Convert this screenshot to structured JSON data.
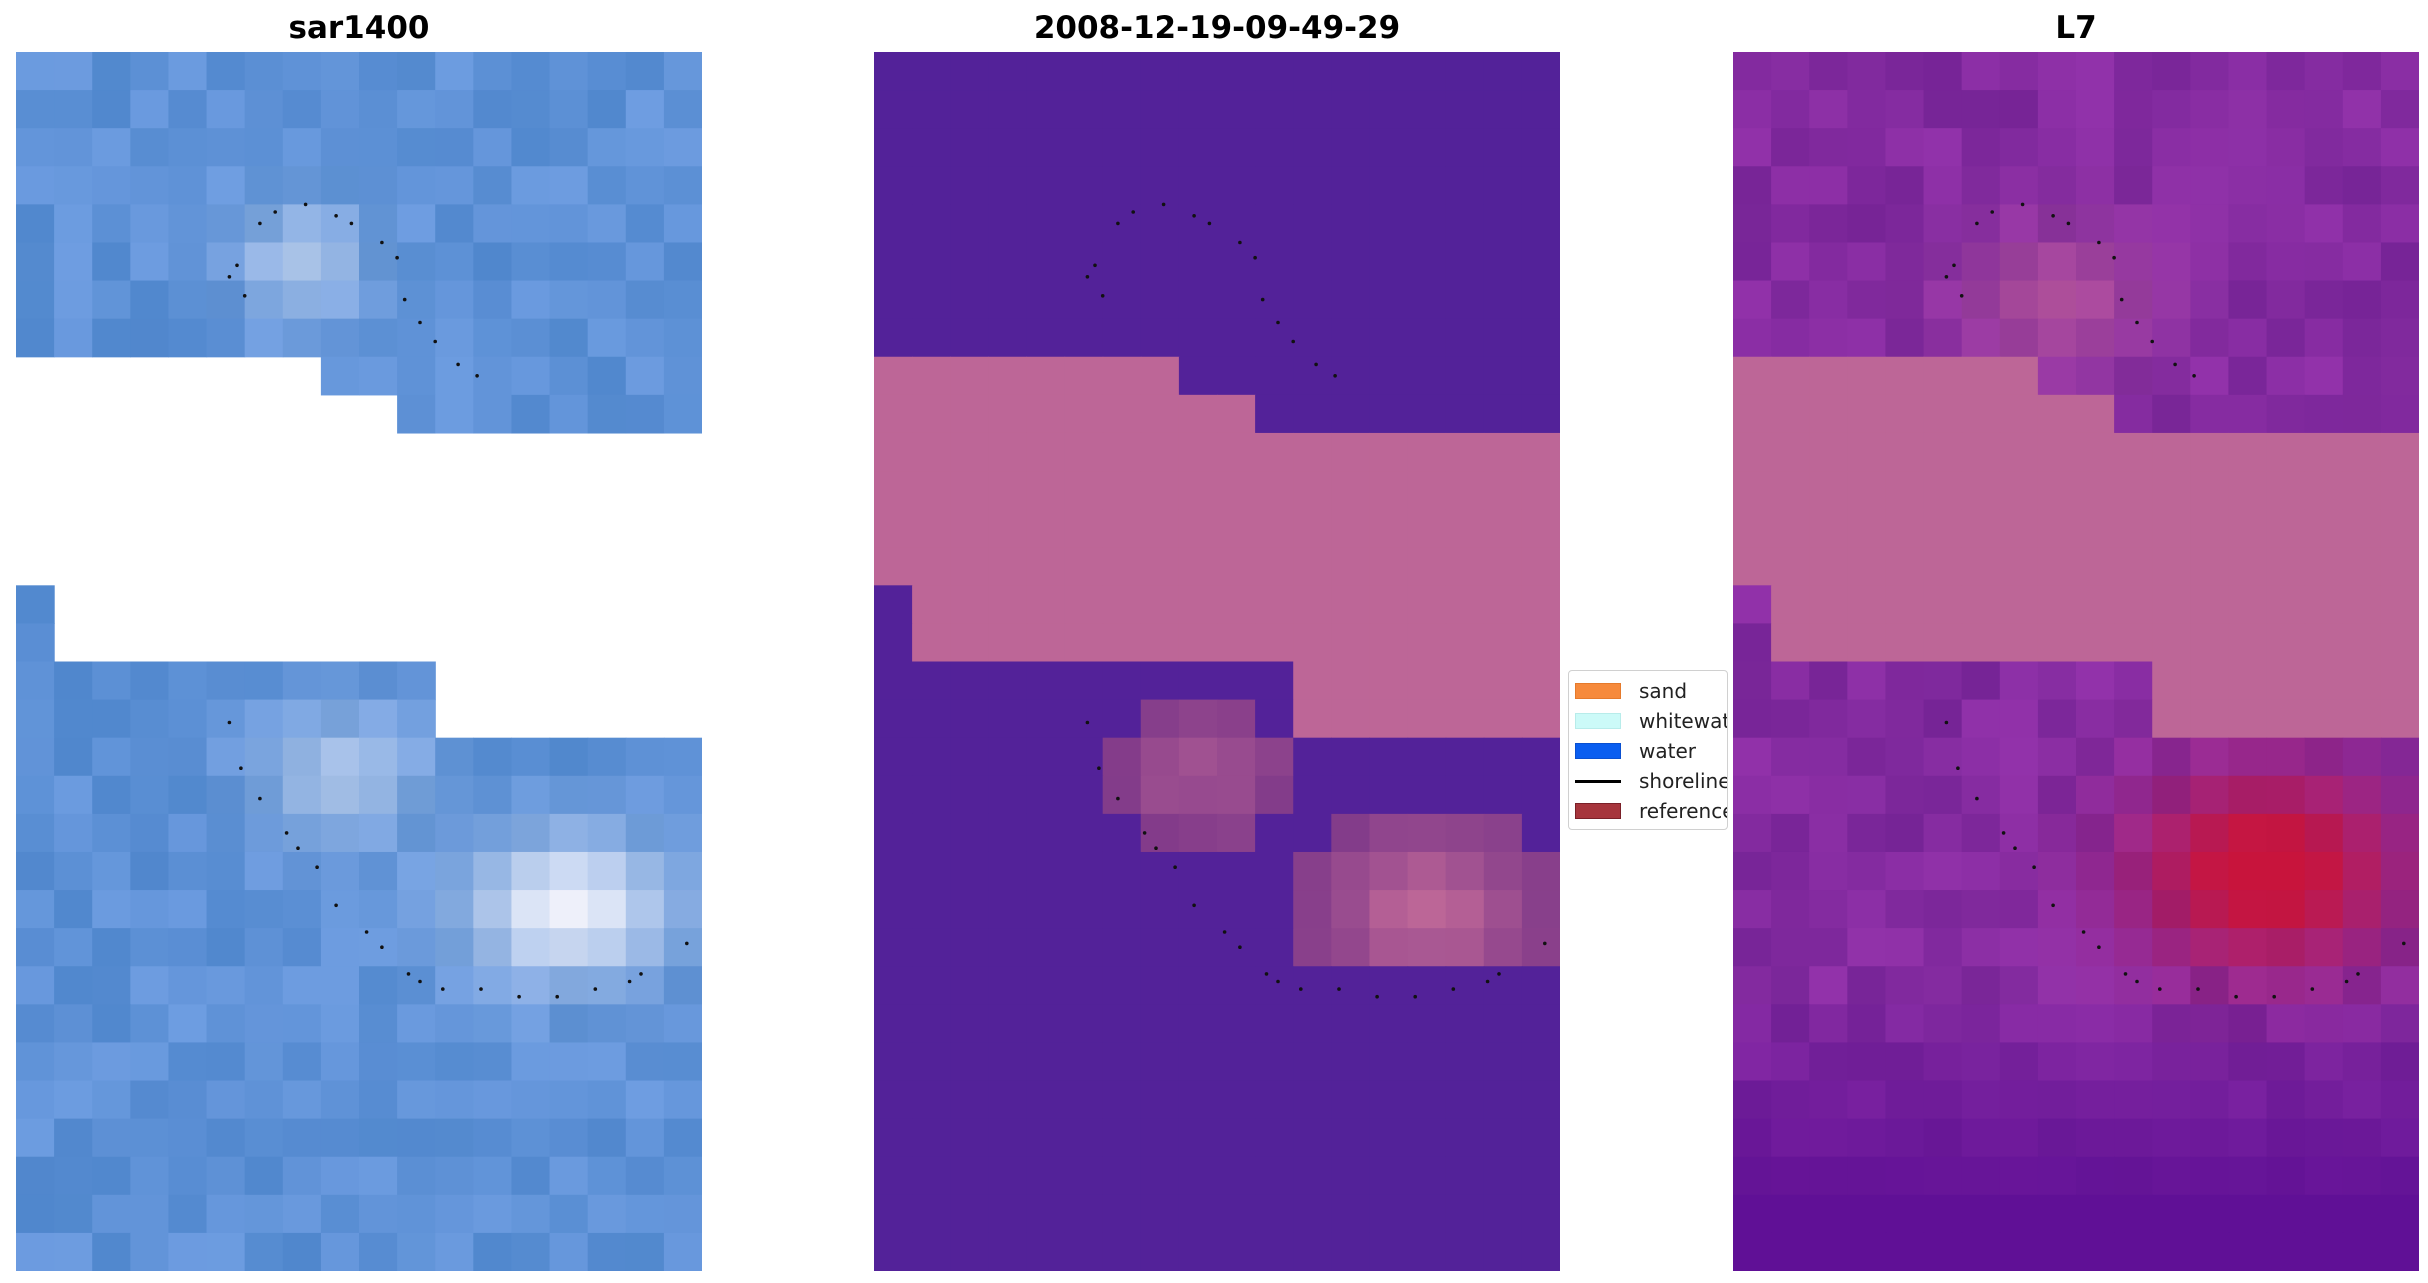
{
  "panels": [
    {
      "id": "sar",
      "title": "sar1400"
    },
    {
      "id": "class",
      "title": "2008-12-19-09-49-29"
    },
    {
      "id": "l7",
      "title": "L7"
    }
  ],
  "legend": {
    "items": [
      {
        "label": "sand",
        "color": "#f68a3c",
        "kind": "patch"
      },
      {
        "label": "whitewater",
        "color": "#ccfaf8",
        "kind": "patch"
      },
      {
        "label": "water",
        "color": "#0a5ef0",
        "kind": "patch"
      },
      {
        "label": "shoreline",
        "color": "#000000",
        "kind": "line"
      },
      {
        "label": "reference",
        "color": "#a6353c",
        "kind": "patch"
      }
    ]
  },
  "colors": {
    "sar_water": "#5a8fd8",
    "class_water": "#532299",
    "class_sand_overlay": "#bd6697",
    "l7_base": "#6e1fa0",
    "l7_red": "#c4143e",
    "background": "#ffffff"
  }
}
